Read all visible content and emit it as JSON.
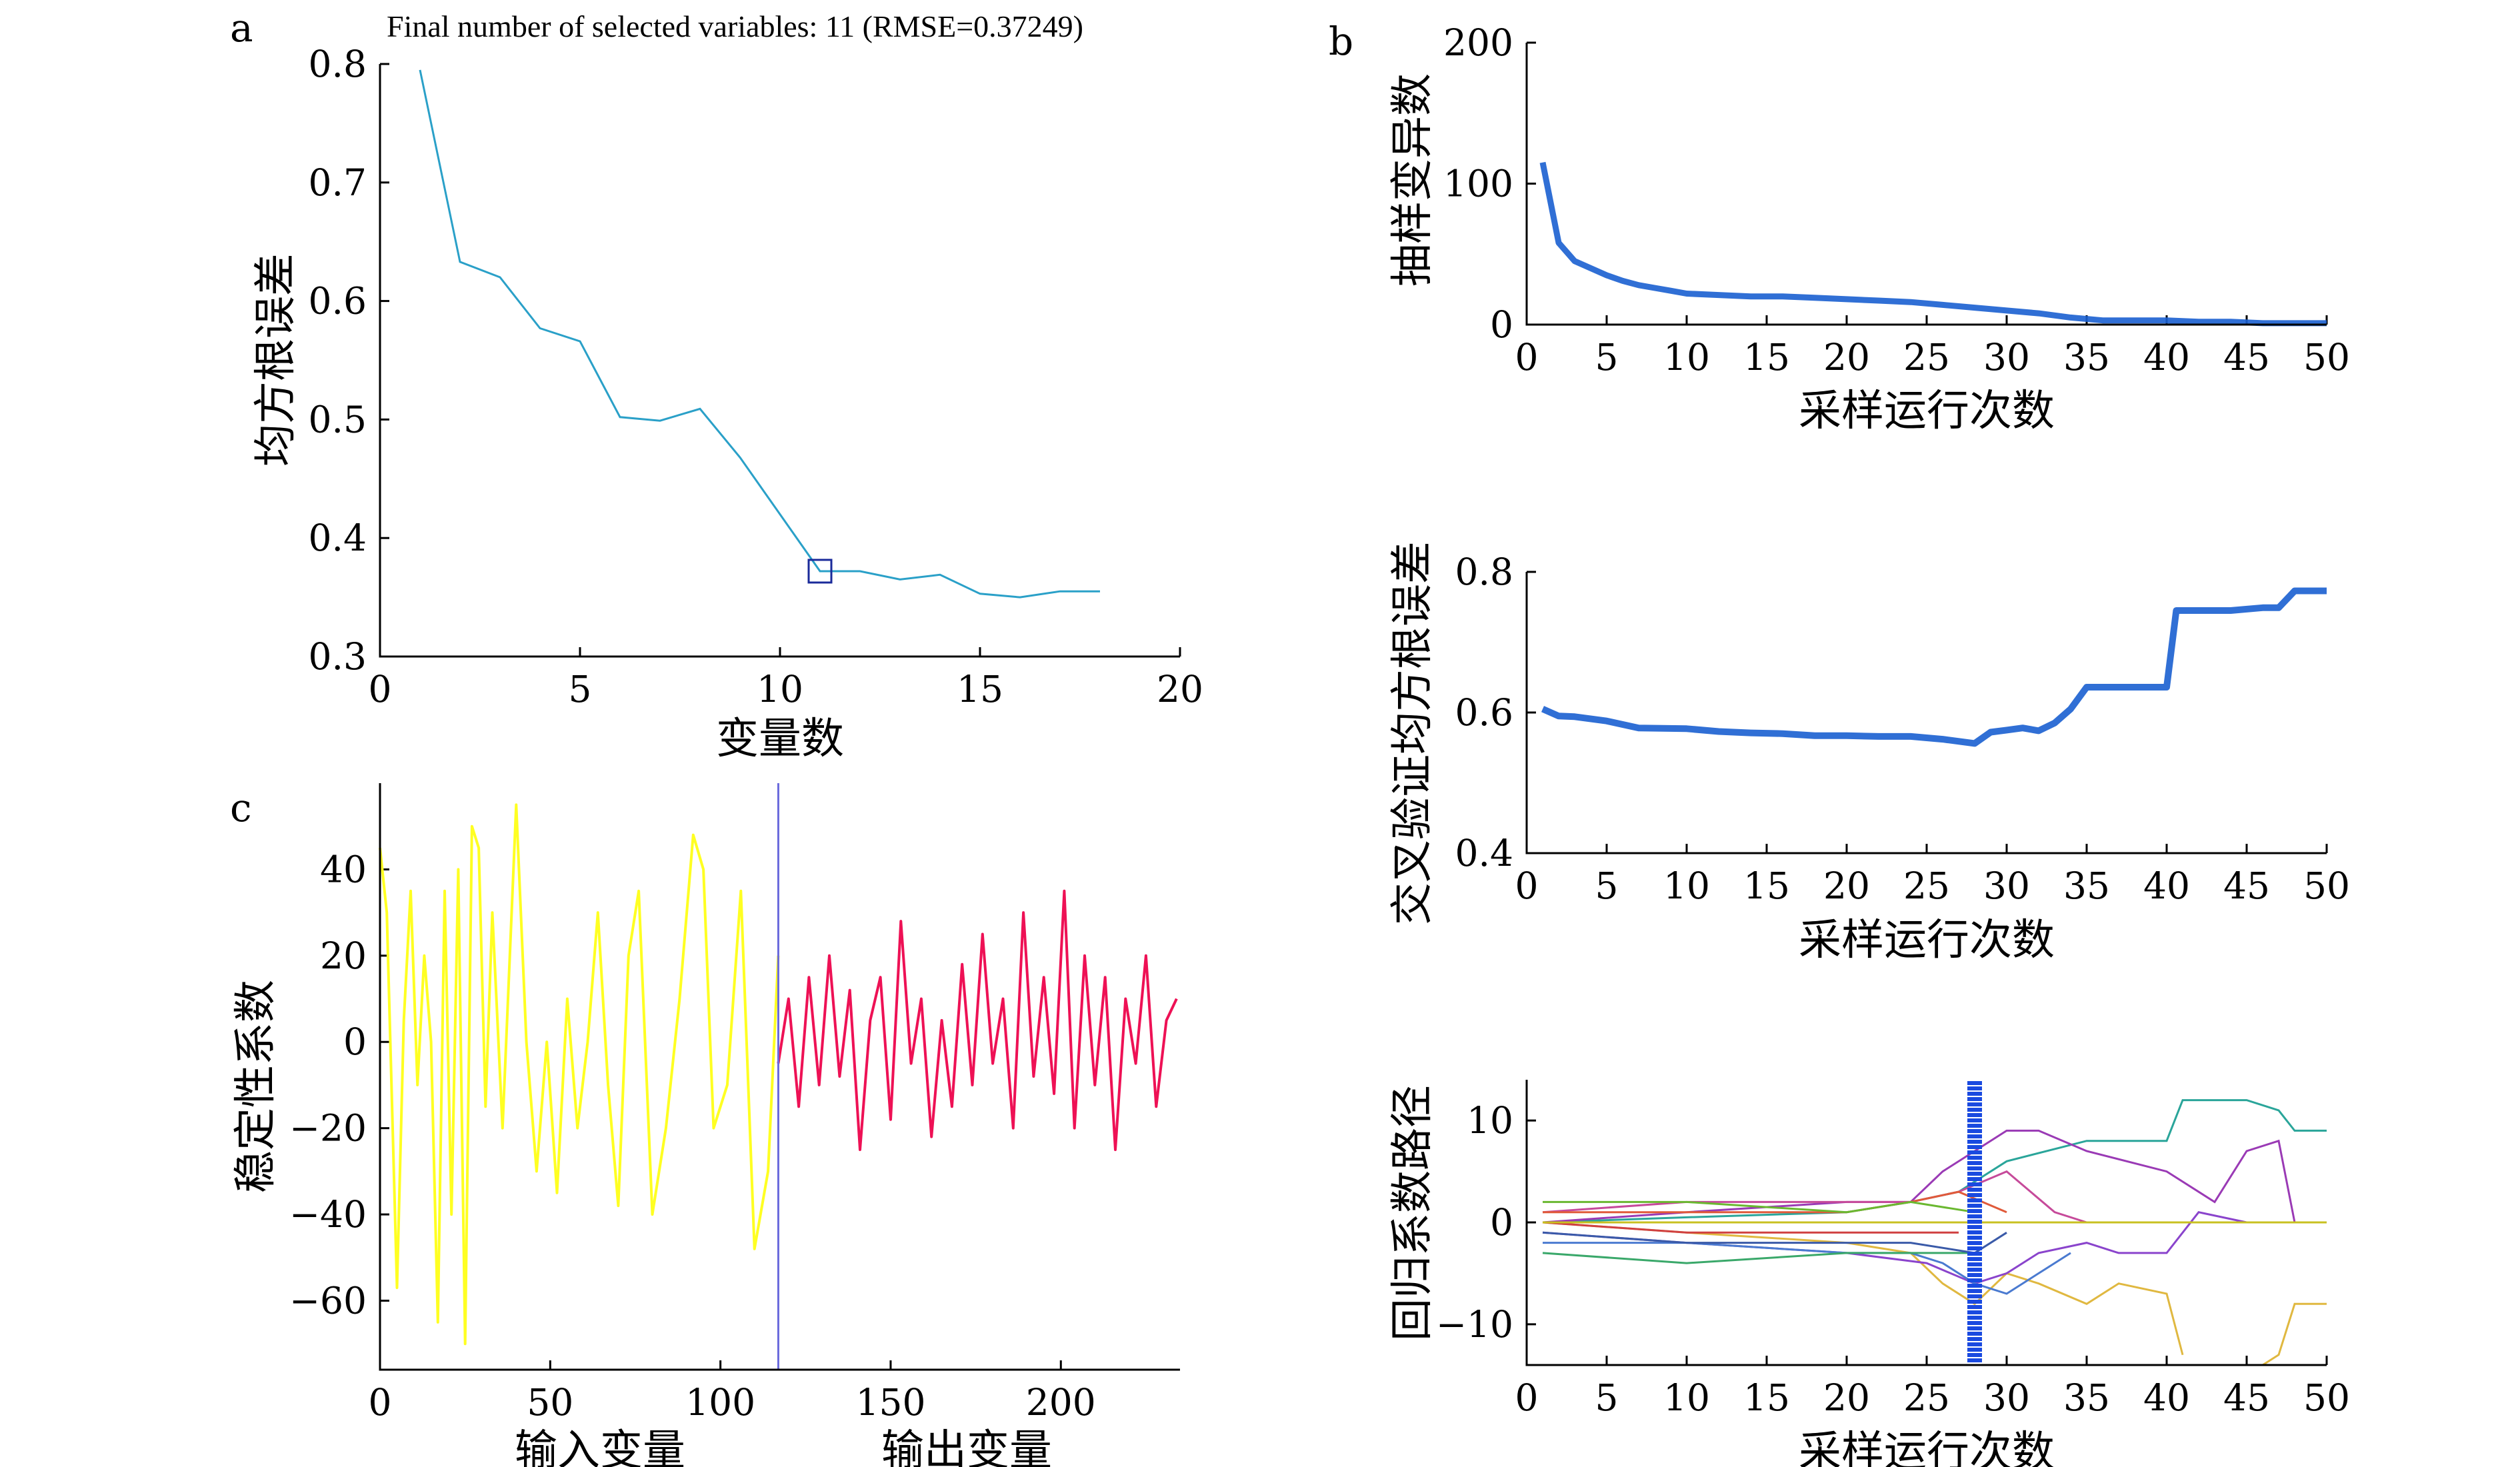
{
  "panels": {
    "a": {
      "letter": "a",
      "title": "Final number of selected variables: 11 (RMSE=0.37249)",
      "xlabel": "变量数",
      "ylabel": "均方根误差",
      "xticks": [
        "0",
        "5",
        "10",
        "15",
        "20"
      ],
      "yticks": [
        "0.8",
        "0.7",
        "0.6",
        "0.5",
        "0.4",
        "0.3"
      ]
    },
    "b1": {
      "letter": "b",
      "xlabel": "采样运行次数",
      "ylabel": "抽样变异数",
      "xticks": [
        "0",
        "5",
        "10",
        "15",
        "20",
        "25",
        "30",
        "35",
        "40",
        "45",
        "50"
      ],
      "yticks": [
        "200",
        "100",
        "0"
      ]
    },
    "b2": {
      "xlabel": "采样运行次数",
      "ylabel": "交叉验证均方根误差",
      "xticks": [
        "0",
        "5",
        "10",
        "15",
        "20",
        "25",
        "30",
        "35",
        "40",
        "45",
        "50"
      ],
      "yticks": [
        "0.8",
        "0.6",
        "0.4"
      ]
    },
    "b3": {
      "xlabel": "采样运行次数",
      "ylabel": "回归系数路径",
      "xticks": [
        "0",
        "5",
        "10",
        "15",
        "20",
        "25",
        "30",
        "35",
        "40",
        "45",
        "50"
      ],
      "yticks": [
        "10",
        "0",
        "−10"
      ]
    },
    "c": {
      "letter": "c",
      "ylabel": "稳定性系数",
      "xlabel_left": "输入变量",
      "xlabel_right": "输出变量",
      "xticks": [
        "0",
        "50",
        "100",
        "150",
        "200"
      ],
      "yticks": [
        "40",
        "20",
        "0",
        "−20",
        "−40",
        "−60"
      ]
    }
  },
  "chart_data": [
    {
      "panel": "a",
      "type": "line",
      "title": "Final number of selected variables: 11 (RMSE=0.37249)",
      "xlabel": "变量数",
      "ylabel": "均方根误差",
      "xlim": [
        0,
        20
      ],
      "ylim": [
        0.3,
        0.8
      ],
      "color": "#2aa0c8",
      "marker_color": "#1a2a9a",
      "x": [
        1,
        2,
        3,
        4,
        5,
        6,
        7,
        8,
        9,
        10,
        11,
        12,
        13,
        14,
        15,
        16,
        17,
        18
      ],
      "y": [
        0.795,
        0.633,
        0.62,
        0.577,
        0.566,
        0.502,
        0.499,
        0.509,
        0.468,
        0.42,
        0.372,
        0.372,
        0.365,
        0.369,
        0.353,
        0.35,
        0.355,
        0.355
      ],
      "highlight": {
        "x": 11,
        "y": 0.372
      }
    },
    {
      "panel": "b",
      "type": "line",
      "xlabel": "采样运行次数",
      "ylabel": "抽样变异数",
      "xlim": [
        0,
        50
      ],
      "ylim": [
        0,
        200
      ],
      "color": "#1a5fd0",
      "x": [
        1,
        2,
        3,
        4,
        5,
        6,
        7,
        8,
        9,
        10,
        12,
        14,
        16,
        18,
        20,
        22,
        24,
        26,
        28,
        30,
        32,
        34,
        36,
        38,
        40,
        42,
        44,
        46,
        48,
        50
      ],
      "y": [
        115,
        58,
        45,
        40,
        35,
        31,
        28,
        26,
        24,
        22,
        21,
        20,
        20,
        19,
        18,
        17,
        16,
        14,
        12,
        10,
        8,
        5,
        3,
        3,
        3,
        2,
        2,
        1,
        1,
        1
      ]
    },
    {
      "panel": "b",
      "type": "line",
      "xlabel": "采样运行次数",
      "ylabel": "交叉验证均方根误差",
      "xlim": [
        0,
        50
      ],
      "ylim": [
        0.4,
        0.8
      ],
      "color": "#1a5fd0",
      "x": [
        1,
        2,
        3,
        5,
        7,
        10,
        12,
        14,
        16,
        18,
        20,
        22,
        24,
        26,
        28,
        29,
        30,
        31,
        32,
        33,
        34,
        35,
        36,
        38,
        40,
        40.6,
        41,
        44,
        46,
        47,
        48,
        50
      ],
      "y": [
        0.605,
        0.595,
        0.594,
        0.588,
        0.578,
        0.577,
        0.573,
        0.571,
        0.57,
        0.567,
        0.567,
        0.566,
        0.566,
        0.562,
        0.556,
        0.572,
        0.575,
        0.578,
        0.574,
        0.585,
        0.605,
        0.636,
        0.636,
        0.636,
        0.636,
        0.745,
        0.745,
        0.745,
        0.749,
        0.749,
        0.773,
        0.773
      ]
    },
    {
      "panel": "b",
      "type": "line",
      "xlabel": "采样运行次数",
      "ylabel": "回归系数路径",
      "xlim": [
        0,
        50
      ],
      "ylim": [
        -14,
        14
      ],
      "marker_x": 28,
      "marker_color": "#1a4ae0",
      "series": [
        {
          "color": "#2aa59a",
          "x": [
            1,
            10,
            20,
            24,
            27,
            30,
            35,
            40,
            41,
            42,
            45,
            47,
            48,
            50
          ],
          "y": [
            0,
            0.5,
            1,
            2,
            3,
            6,
            8,
            8,
            12,
            12,
            12,
            11,
            9,
            9
          ]
        },
        {
          "color": "#9a3ab5",
          "x": [
            1,
            10,
            20,
            24,
            26,
            28,
            30,
            32,
            35,
            40,
            43,
            45,
            47,
            48
          ],
          "y": [
            0,
            1,
            2,
            2,
            5,
            7,
            9,
            9,
            7,
            5,
            2,
            7,
            8,
            0
          ]
        },
        {
          "color": "#e0b840",
          "x": [
            1,
            10,
            20,
            24,
            26,
            28,
            30,
            32,
            35,
            37,
            40,
            41
          ],
          "y": [
            0,
            -1,
            -2,
            -3,
            -6,
            -8,
            -5,
            -6,
            -8,
            -6,
            -7,
            -13
          ]
        },
        {
          "color": "#e0b840",
          "x": [
            46,
            47,
            48,
            50
          ],
          "y": [
            -14,
            -13,
            -8,
            -8
          ]
        },
        {
          "color": "#8a44cc",
          "x": [
            1,
            10,
            20,
            25,
            28,
            30,
            32,
            35,
            37,
            40,
            42,
            45
          ],
          "y": [
            -1,
            -2,
            -3,
            -4,
            -6,
            -5,
            -3,
            -2,
            -3,
            -3,
            1,
            0
          ]
        },
        {
          "color": "#c64a9a",
          "x": [
            1,
            10,
            20,
            24,
            27,
            30,
            33,
            35
          ],
          "y": [
            1,
            2,
            2,
            2,
            3,
            5,
            1,
            0
          ]
        },
        {
          "color": "#4a7ad0",
          "x": [
            1,
            10,
            20,
            24,
            26,
            28,
            30,
            32,
            34
          ],
          "y": [
            -2,
            -2,
            -3,
            -3,
            -4,
            -6,
            -7,
            -5,
            -3
          ]
        },
        {
          "color": "#3aa86a",
          "x": [
            1,
            10,
            20,
            24,
            28
          ],
          "y": [
            -3,
            -4,
            -3,
            -3,
            -3
          ]
        },
        {
          "color": "#e05a3a",
          "x": [
            1,
            10,
            20,
            24,
            27,
            30
          ],
          "y": [
            1,
            1,
            1,
            2,
            3,
            1
          ]
        },
        {
          "color": "#6ab830",
          "x": [
            1,
            10,
            20,
            24,
            28
          ],
          "y": [
            2,
            2,
            1,
            2,
            1
          ]
        },
        {
          "color": "#d04040",
          "x": [
            1,
            10,
            20,
            24,
            27
          ],
          "y": [
            0,
            -1,
            -1,
            -1,
            -1
          ]
        },
        {
          "color": "#3a5aa8",
          "x": [
            1,
            10,
            20,
            24,
            28,
            30
          ],
          "y": [
            -1,
            -2,
            -2,
            -2,
            -3,
            -1
          ]
        },
        {
          "color": "#c8c020",
          "x": [
            1,
            10,
            20,
            28,
            35,
            40,
            50
          ],
          "y": [
            0,
            0,
            0,
            0,
            0,
            0,
            0
          ]
        }
      ]
    },
    {
      "panel": "c",
      "type": "line",
      "ylabel": "稳定性系数",
      "xlim": [
        0,
        235
      ],
      "ylim": [
        -76,
        60
      ],
      "divider_x": 117,
      "divider_color": "#6a6adc",
      "series": [
        {
          "name": "输入变量",
          "color": "#ffff22",
          "x": [
            0,
            2,
            5,
            7,
            9,
            11,
            13,
            15,
            17,
            19,
            21,
            23,
            25,
            27,
            29,
            31,
            33,
            36,
            40,
            43,
            46,
            49,
            52,
            55,
            58,
            61,
            64,
            67,
            70,
            73,
            76,
            80,
            84,
            88,
            92,
            95,
            98,
            102,
            106,
            110,
            114,
            117
          ],
          "y": [
            45,
            30,
            -57,
            5,
            35,
            -10,
            20,
            0,
            -65,
            35,
            -40,
            40,
            -70,
            50,
            45,
            -15,
            30,
            -20,
            55,
            0,
            -30,
            0,
            -35,
            10,
            -20,
            0,
            30,
            -10,
            -38,
            20,
            35,
            -40,
            -20,
            10,
            48,
            40,
            -20,
            -10,
            35,
            -48,
            -30,
            20
          ]
        },
        {
          "name": "输出变量",
          "color": "#ee1155",
          "x": [
            117,
            120,
            123,
            126,
            129,
            132,
            135,
            138,
            141,
            144,
            147,
            150,
            153,
            156,
            159,
            162,
            165,
            168,
            171,
            174,
            177,
            180,
            183,
            186,
            189,
            192,
            195,
            198,
            201,
            204,
            207,
            210,
            213,
            216,
            219,
            222,
            225,
            228,
            231,
            234
          ],
          "y": [
            -5,
            10,
            -15,
            15,
            -10,
            20,
            -8,
            12,
            -25,
            5,
            15,
            -18,
            28,
            -5,
            10,
            -22,
            5,
            -15,
            18,
            -10,
            25,
            -5,
            10,
            -20,
            30,
            -8,
            15,
            -12,
            35,
            -20,
            20,
            -10,
            15,
            -25,
            10,
            -5,
            20,
            -15,
            5,
            10
          ]
        }
      ]
    }
  ]
}
